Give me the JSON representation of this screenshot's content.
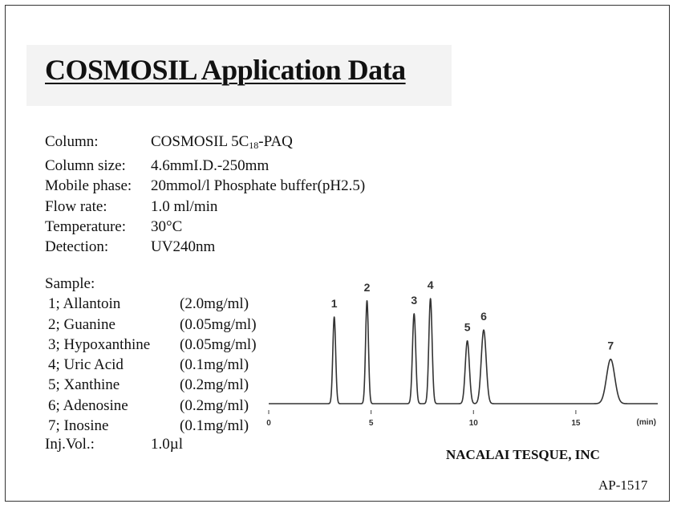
{
  "title": "COSMOSIL Application Data",
  "conditions": [
    {
      "label": "Column:",
      "value_pre": "COSMOSIL 5C",
      "value_sub": "18",
      "value_post": "-PAQ"
    },
    {
      "label": "Column size:",
      "value_pre": "4.6mmI.D.-250mm",
      "value_sub": "",
      "value_post": ""
    },
    {
      "label": "Mobile phase:",
      "value_pre": "20mmol/l Phosphate buffer(pH2.5)",
      "value_sub": "",
      "value_post": ""
    },
    {
      "label": "Flow rate:",
      "value_pre": "1.0 ml/min",
      "value_sub": "",
      "value_post": ""
    },
    {
      "label": "Temperature:",
      "value_pre": "30°C",
      "value_sub": "",
      "value_post": ""
    },
    {
      "label": "Detection:",
      "value_pre": "UV240nm",
      "value_sub": "",
      "value_post": ""
    }
  ],
  "sample": {
    "heading": "Sample:",
    "items": [
      {
        "name": "1; Allantoin",
        "conc": "(2.0mg/ml)"
      },
      {
        "name": "2; Guanine",
        "conc": "(0.05mg/ml)"
      },
      {
        "name": "3; Hypoxanthine",
        "conc": "(0.05mg/ml)"
      },
      {
        "name": "4; Uric Acid",
        "conc": "(0.1mg/ml)"
      },
      {
        "name": "5; Xanthine",
        "conc": "(0.2mg/ml)"
      },
      {
        "name": "6; Adenosine",
        "conc": "(0.2mg/ml)"
      },
      {
        "name": "7; Inosine",
        "conc": "(0.1mg/ml)"
      }
    ]
  },
  "injection": {
    "label": "Inj.Vol.:",
    "value": "1.0µl"
  },
  "company": "NACALAI TESQUE, INC",
  "doc_code": "AP-1517",
  "chart_data": {
    "type": "line",
    "title": "",
    "xlabel": "(min)",
    "ylabel": "",
    "xlim": [
      0,
      19
    ],
    "ylim": [
      0,
      1.0
    ],
    "x_ticks": [
      0,
      5,
      10,
      15
    ],
    "grid": false,
    "legend": "none",
    "series": [
      {
        "values_note": "",
        "peaks": [
          {
            "label": "1",
            "rt": 3.2,
            "height": 0.8,
            "width": 0.07
          },
          {
            "label": "2",
            "rt": 4.8,
            "height": 0.95,
            "width": 0.07
          },
          {
            "label": "3",
            "rt": 7.1,
            "height": 0.83,
            "width": 0.08
          },
          {
            "label": "4",
            "rt": 7.9,
            "height": 0.97,
            "width": 0.08
          },
          {
            "label": "5",
            "rt": 9.7,
            "height": 0.58,
            "width": 0.1
          },
          {
            "label": "6",
            "rt": 10.5,
            "height": 0.68,
            "width": 0.12
          },
          {
            "label": "7",
            "rt": 16.7,
            "height": 0.41,
            "width": 0.2
          }
        ]
      }
    ]
  }
}
